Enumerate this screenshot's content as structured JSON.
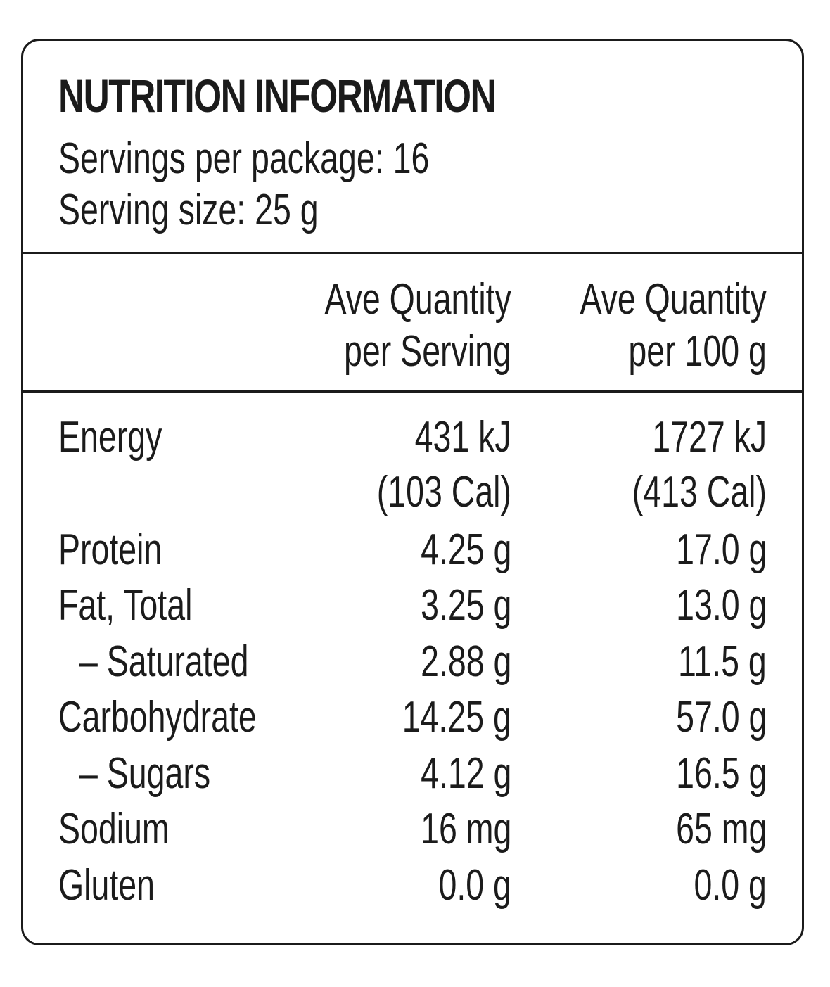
{
  "label": {
    "title": "NUTRITION INFORMATION",
    "servings_per_package": "Servings per package: 16",
    "serving_size": "Serving size: 25 g",
    "columns": {
      "per_serving": [
        "Ave Quantity",
        "per Serving"
      ],
      "per_100g": [
        "Ave Quantity",
        "per 100 g"
      ]
    },
    "rows": [
      {
        "name": "Energy",
        "per_serving": "431 kJ",
        "per_100g": "1727 kJ"
      },
      {
        "name": "",
        "per_serving": "(103 Cal)",
        "per_100g": "(413 Cal)"
      },
      {
        "name": "Protein",
        "per_serving": "4.25 g",
        "per_100g": "17.0 g"
      },
      {
        "name": "Fat, Total",
        "per_serving": "3.25 g",
        "per_100g": "13.0 g"
      },
      {
        "name": "– Saturated",
        "per_serving": "2.88 g",
        "per_100g": "11.5 g"
      },
      {
        "name": "Carbohydrate",
        "per_serving": "14.25 g",
        "per_100g": "57.0 g"
      },
      {
        "name": "– Sugars",
        "per_serving": "4.12 g",
        "per_100g": "16.5 g"
      },
      {
        "name": "Sodium",
        "per_serving": "16 mg",
        "per_100g": "65 mg"
      },
      {
        "name": "Gluten",
        "per_serving": "0.0 g",
        "per_100g": "0.0 g"
      }
    ]
  }
}
